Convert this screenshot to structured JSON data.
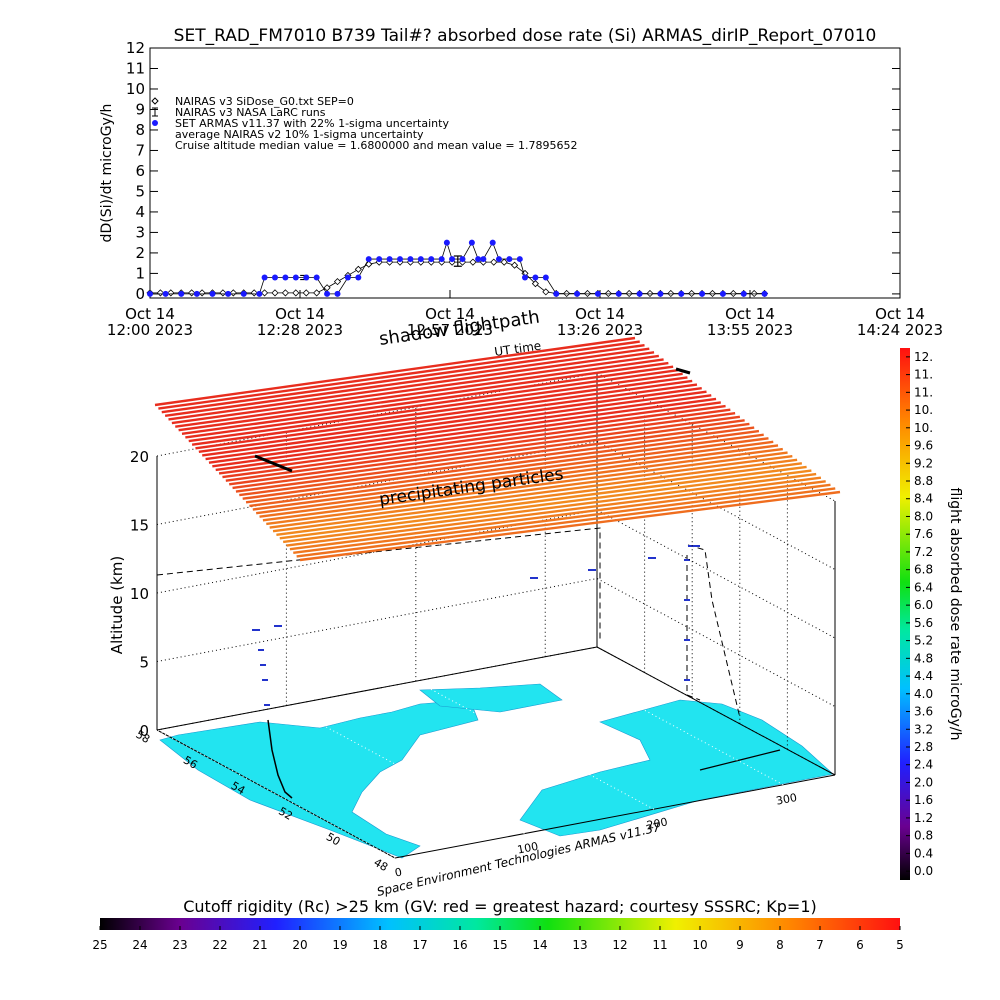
{
  "chart_data": [
    {
      "type": "line",
      "title": "SET_RAD_FM7010  B739 Tail#? absorbed dose rate (Si) ARMAS_dirIP_Report_07010",
      "ylabel": "dD(Si)/dt microGy/h",
      "xlim": [
        0,
        144
      ],
      "xticks": [
        {
          "value": 0,
          "label": "Oct 14\n12:00 2023"
        },
        {
          "value": 28.8,
          "label": "Oct 14\n12:28 2023"
        },
        {
          "value": 57.6,
          "label": "Oct 14\n12:57 2023"
        },
        {
          "value": 86.4,
          "label": "Oct 14\n13:26 2023"
        },
        {
          "value": 115.2,
          "label": "Oct 14\n13:55 2023"
        },
        {
          "value": 144,
          "label": "Oct 14\n14:24 2023"
        }
      ],
      "ylim": [
        -0.2,
        12
      ],
      "yticks": [
        0,
        1,
        2,
        3,
        4,
        5,
        6,
        7,
        8,
        9,
        10,
        11,
        12
      ],
      "series": [
        {
          "name": "NAIRAS v3 SiDose_G0.txt SEP=0",
          "color": "#000000",
          "marker": "diamond",
          "x": [
            0,
            2,
            4,
            6,
            8,
            10,
            12,
            14,
            16,
            18,
            20,
            22,
            24,
            26,
            28,
            30,
            32,
            34,
            36,
            38,
            40,
            42,
            44,
            46,
            48,
            50,
            52,
            54,
            56,
            58,
            60,
            62,
            64,
            66,
            68,
            70,
            72,
            74,
            76,
            78,
            80,
            82,
            84,
            86,
            88,
            90,
            92,
            94,
            96,
            98,
            100,
            102,
            104,
            106,
            108,
            110,
            112,
            114,
            116,
            118
          ],
          "values": [
            0.05,
            0.05,
            0.05,
            0.05,
            0.05,
            0.05,
            0.05,
            0.05,
            0.05,
            0.05,
            0.05,
            0.05,
            0.05,
            0.05,
            0.05,
            0.05,
            0.05,
            0.3,
            0.6,
            0.9,
            1.2,
            1.45,
            1.55,
            1.55,
            1.55,
            1.55,
            1.55,
            1.55,
            1.55,
            1.55,
            1.55,
            1.55,
            1.55,
            1.55,
            1.55,
            1.4,
            1.0,
            0.5,
            0.1,
            0.02,
            0.02,
            0.02,
            0.02,
            0.02,
            0.02,
            0.02,
            0.02,
            0.02,
            0.02,
            0.02,
            0.02,
            0.02,
            0.02,
            0.02,
            0.02,
            0.02,
            0.02,
            0.02,
            0.02,
            0.02
          ]
        },
        {
          "name": "NAIRAS v3 NASA LaRC runs",
          "color": "#000000",
          "marker": "errorbar",
          "x": [
            29.6,
            59.1
          ],
          "values": [
            0.8,
            1.6
          ],
          "errors": [
            0.1,
            0.25
          ]
        },
        {
          "name": "SET ARMAS v11.37 with 22% 1-sigma uncertainty",
          "color": "#1a1aff",
          "marker": "circle",
          "x": [
            0,
            3,
            6,
            9,
            12,
            15,
            18,
            21,
            22,
            24,
            26,
            28,
            30,
            32,
            34,
            36,
            38,
            40,
            42,
            44,
            46,
            48,
            50,
            52,
            54,
            56,
            57,
            58,
            60,
            61.8,
            63,
            64,
            65.8,
            67,
            69,
            71,
            72,
            74,
            76,
            78,
            82,
            86,
            90,
            94,
            98,
            102,
            106,
            110,
            114,
            118
          ],
          "values": [
            0,
            0,
            0,
            0,
            0,
            0,
            0,
            0,
            0.8,
            0.8,
            0.8,
            0.8,
            0.8,
            0.8,
            0,
            0,
            0.8,
            0.8,
            1.7,
            1.7,
            1.7,
            1.7,
            1.7,
            1.7,
            1.7,
            1.7,
            2.5,
            1.7,
            1.7,
            2.5,
            1.7,
            1.7,
            2.5,
            1.7,
            1.7,
            1.7,
            0.8,
            0.8,
            0.8,
            0,
            0,
            0,
            0,
            0,
            0,
            0,
            0,
            0,
            0,
            0
          ]
        }
      ],
      "annotations": [
        "average NAIRAS v2 10% 1-sigma uncertainty",
        "Cruise altitude median value = 1.6800000 and mean value = 1.7895652"
      ]
    },
    {
      "type": "surface3d",
      "ylabel": "Altitude (km)",
      "ylim": [
        0,
        20
      ],
      "yticks": [
        0,
        5,
        10,
        15,
        20
      ],
      "xlim": [
        0,
        340
      ],
      "xticks": [
        0,
        100,
        200,
        300
      ],
      "zlim": [
        48,
        58
      ],
      "zticks": [
        48,
        50,
        52,
        54,
        56,
        58
      ],
      "annotations": [
        "shadow flightpath",
        "UT time",
        "precipitating particles",
        "Space Environment Technologies ARMAS v11.37"
      ]
    },
    {
      "type": "colorbar",
      "orientation": "vertical",
      "label": "flight absorbed dose rate microGy/h",
      "lim": [
        -0.2,
        11.8
      ],
      "ticks": [
        {
          "value": 0,
          "label": "0.0"
        },
        0.4,
        0.8,
        1.2,
        1.6,
        {
          "value": 2,
          "label": "2.0"
        },
        2.4,
        2.8,
        3.2,
        3.6,
        {
          "value": 4,
          "label": "4.0"
        },
        4.4,
        4.8,
        5.2,
        5.6,
        {
          "value": 6,
          "label": "6.0"
        },
        6.4,
        6.8,
        7.2,
        7.6,
        {
          "value": 8,
          "label": "8.0"
        },
        8.4,
        8.8,
        9.2,
        9.6,
        {
          "value": 10,
          "label": "10."
        },
        {
          "value": 10.4,
          "label": "10."
        },
        {
          "value": 10.8,
          "label": "11."
        },
        {
          "value": 11.2,
          "label": "11."
        },
        {
          "value": 11.6,
          "label": "12."
        }
      ]
    },
    {
      "type": "colorbar",
      "orientation": "horizontal",
      "label": "Cutoff rigidity (Rc) >25 km (GV: red = greatest hazard; courtesy SSSRC; Kp=1)",
      "lim": [
        25,
        5
      ],
      "ticks": [
        25,
        24,
        23,
        22,
        21,
        20,
        19,
        18,
        17,
        16,
        15,
        14,
        13,
        12,
        11,
        10,
        9,
        8,
        7,
        6,
        5
      ]
    }
  ]
}
